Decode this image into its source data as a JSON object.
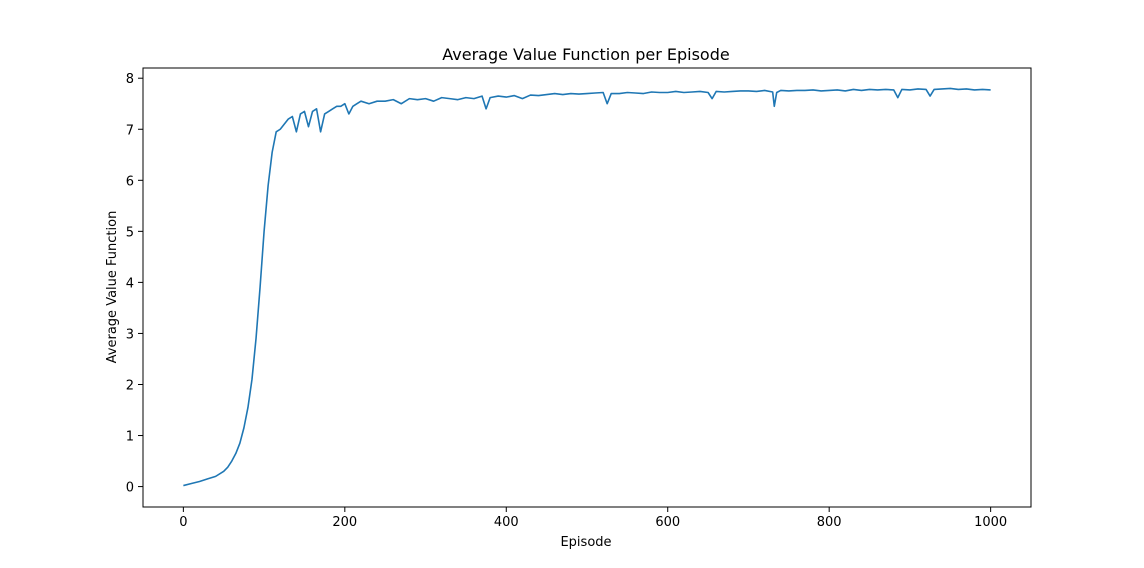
{
  "chart_data": {
    "type": "line",
    "title": "Average Value Function per Episode",
    "xlabel": "Episode",
    "ylabel": "Average Value Function",
    "xlim": [
      -50,
      1050
    ],
    "ylim": [
      -0.4,
      8.2
    ],
    "xticks": [
      0,
      200,
      400,
      600,
      800,
      1000
    ],
    "yticks": [
      0,
      1,
      2,
      3,
      4,
      5,
      6,
      7,
      8
    ],
    "grid": false,
    "legend": "none",
    "series": [
      {
        "color": "#1f77b4",
        "x": [
          0,
          10,
          20,
          30,
          40,
          50,
          55,
          60,
          65,
          70,
          75,
          80,
          85,
          90,
          95,
          100,
          105,
          110,
          115,
          120,
          125,
          130,
          135,
          140,
          145,
          150,
          155,
          160,
          165,
          170,
          175,
          180,
          185,
          190,
          195,
          200,
          205,
          210,
          215,
          220,
          230,
          240,
          250,
          260,
          270,
          280,
          290,
          300,
          310,
          320,
          330,
          340,
          350,
          360,
          370,
          375,
          380,
          390,
          400,
          410,
          420,
          430,
          440,
          450,
          460,
          470,
          480,
          490,
          500,
          510,
          520,
          525,
          530,
          540,
          550,
          560,
          570,
          580,
          590,
          600,
          610,
          620,
          630,
          640,
          650,
          655,
          660,
          670,
          680,
          690,
          700,
          710,
          720,
          730,
          732,
          735,
          740,
          750,
          760,
          770,
          780,
          790,
          800,
          810,
          820,
          830,
          840,
          850,
          860,
          870,
          880,
          885,
          890,
          900,
          910,
          920,
          925,
          930,
          940,
          950,
          960,
          970,
          980,
          990,
          1000
        ],
        "y": [
          0.02,
          0.06,
          0.1,
          0.15,
          0.2,
          0.3,
          0.38,
          0.5,
          0.65,
          0.85,
          1.15,
          1.55,
          2.1,
          2.9,
          3.9,
          5.0,
          5.9,
          6.55,
          6.95,
          7.0,
          7.1,
          7.2,
          7.25,
          6.95,
          7.3,
          7.35,
          7.05,
          7.35,
          7.4,
          6.95,
          7.3,
          7.35,
          7.4,
          7.45,
          7.45,
          7.5,
          7.3,
          7.45,
          7.5,
          7.55,
          7.5,
          7.55,
          7.55,
          7.58,
          7.5,
          7.6,
          7.58,
          7.6,
          7.55,
          7.62,
          7.6,
          7.58,
          7.62,
          7.6,
          7.65,
          7.4,
          7.62,
          7.65,
          7.63,
          7.66,
          7.6,
          7.67,
          7.66,
          7.68,
          7.7,
          7.68,
          7.7,
          7.69,
          7.7,
          7.71,
          7.72,
          7.5,
          7.7,
          7.7,
          7.72,
          7.71,
          7.7,
          7.73,
          7.72,
          7.72,
          7.74,
          7.72,
          7.73,
          7.74,
          7.72,
          7.6,
          7.74,
          7.73,
          7.74,
          7.75,
          7.75,
          7.74,
          7.76,
          7.73,
          7.45,
          7.72,
          7.76,
          7.75,
          7.76,
          7.76,
          7.77,
          7.75,
          7.76,
          7.77,
          7.75,
          7.78,
          7.76,
          7.78,
          7.77,
          7.78,
          7.77,
          7.62,
          7.78,
          7.77,
          7.79,
          7.78,
          7.65,
          7.78,
          7.79,
          7.8,
          7.78,
          7.79,
          7.77,
          7.78,
          7.77
        ]
      }
    ]
  }
}
